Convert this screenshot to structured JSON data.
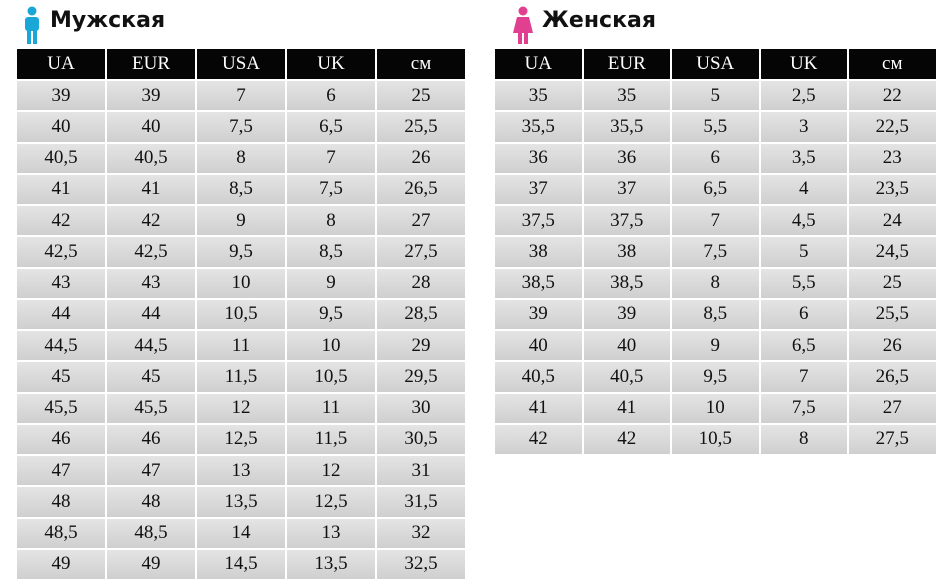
{
  "men": {
    "title": "Мужская",
    "columns": [
      "UA",
      "EUR",
      "USA",
      "UK",
      "см"
    ],
    "rows": [
      [
        "39",
        "39",
        "7",
        "6",
        "25"
      ],
      [
        "40",
        "40",
        "7,5",
        "6,5",
        "25,5"
      ],
      [
        "40,5",
        "40,5",
        "8",
        "7",
        "26"
      ],
      [
        "41",
        "41",
        "8,5",
        "7,5",
        "26,5"
      ],
      [
        "42",
        "42",
        "9",
        "8",
        "27"
      ],
      [
        "42,5",
        "42,5",
        "9,5",
        "8,5",
        "27,5"
      ],
      [
        "43",
        "43",
        "10",
        "9",
        "28"
      ],
      [
        "44",
        "44",
        "10,5",
        "9,5",
        "28,5"
      ],
      [
        "44,5",
        "44,5",
        "11",
        "10",
        "29"
      ],
      [
        "45",
        "45",
        "11,5",
        "10,5",
        "29,5"
      ],
      [
        "45,5",
        "45,5",
        "12",
        "11",
        "30"
      ],
      [
        "46",
        "46",
        "12,5",
        "11,5",
        "30,5"
      ],
      [
        "47",
        "47",
        "13",
        "12",
        "31"
      ],
      [
        "48",
        "48",
        "13,5",
        "12,5",
        "31,5"
      ],
      [
        "48,5",
        "48,5",
        "14",
        "13",
        "32"
      ],
      [
        "49",
        "49",
        "14,5",
        "13,5",
        "32,5"
      ]
    ]
  },
  "women": {
    "title": "Женская",
    "columns": [
      "UA",
      "EUR",
      "USA",
      "UK",
      "см"
    ],
    "rows": [
      [
        "35",
        "35",
        "5",
        "2,5",
        "22"
      ],
      [
        "35,5",
        "35,5",
        "5,5",
        "3",
        "22,5"
      ],
      [
        "36",
        "36",
        "6",
        "3,5",
        "23"
      ],
      [
        "37",
        "37",
        "6,5",
        "4",
        "23,5"
      ],
      [
        "37,5",
        "37,5",
        "7",
        "4,5",
        "24"
      ],
      [
        "38",
        "38",
        "7,5",
        "5",
        "24,5"
      ],
      [
        "38,5",
        "38,5",
        "8",
        "5,5",
        "25"
      ],
      [
        "39",
        "39",
        "8,5",
        "6",
        "25,5"
      ],
      [
        "40",
        "40",
        "9",
        "6,5",
        "26"
      ],
      [
        "40,5",
        "40,5",
        "9,5",
        "7",
        "26,5"
      ],
      [
        "41",
        "41",
        "10",
        "7,5",
        "27"
      ],
      [
        "42",
        "42",
        "10,5",
        "8",
        "27,5"
      ]
    ]
  }
}
